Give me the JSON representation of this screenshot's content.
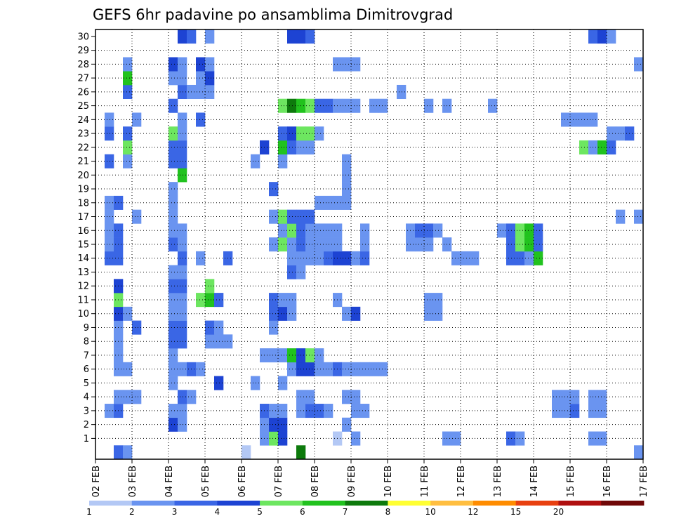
{
  "chart_data": {
    "type": "heatmap",
    "title": "GEFS 6hr padavine po ansamblima Dimitrovgrad",
    "x_unit_per_column": "6h",
    "x_tick_labels": [
      "02 FEB",
      "03 FEB",
      "04 FEB",
      "05 FEB",
      "06 FEB",
      "07 FEB",
      "08 FEB",
      "09 FEB",
      "10 FEB",
      "11 FEB",
      "12 FEB",
      "13 FEB",
      "14 FEB",
      "15 FEB",
      "16 FEB",
      "17 FEB"
    ],
    "y_tick_labels": [
      "1",
      "2",
      "3",
      "4",
      "5",
      "6",
      "7",
      "8",
      "9",
      "10",
      "11",
      "12",
      "13",
      "14",
      "15",
      "16",
      "17",
      "18",
      "19",
      "20",
      "21",
      "22",
      "23",
      "24",
      "25",
      "26",
      "27",
      "28",
      "29",
      "30"
    ],
    "y_range": [
      0,
      30
    ],
    "x_columns": 60,
    "grid": true,
    "legend_position": "bottom",
    "legend": {
      "boundaries": [
        "1",
        "2",
        "3",
        "4",
        "5",
        "6",
        "7",
        "8",
        "10",
        "12",
        "15",
        "20"
      ],
      "colors": [
        "#b3c8f5",
        "#6a94f0",
        "#3a66e5",
        "#1d43d3",
        "#6de660",
        "#21c21e",
        "#0d7a0c",
        "#ffff33",
        "#ffbe40",
        "#ff8c00",
        "#e84010",
        "#b01010",
        "#700808"
      ]
    },
    "cells": [
      [
        0,
        2,
        2
      ],
      [
        0,
        3,
        1
      ],
      [
        0,
        16,
        0
      ],
      [
        0,
        22,
        6
      ],
      [
        0,
        59,
        1
      ],
      [
        1,
        18,
        1
      ],
      [
        1,
        19,
        4
      ],
      [
        1,
        20,
        3
      ],
      [
        1,
        26,
        0
      ],
      [
        1,
        28,
        1
      ],
      [
        1,
        38,
        1
      ],
      [
        1,
        39,
        1
      ],
      [
        1,
        45,
        2
      ],
      [
        1,
        46,
        1
      ],
      [
        1,
        54,
        1
      ],
      [
        1,
        55,
        1
      ],
      [
        2,
        8,
        3
      ],
      [
        2,
        9,
        1
      ],
      [
        2,
        18,
        1
      ],
      [
        2,
        19,
        3
      ],
      [
        2,
        20,
        3
      ],
      [
        2,
        27,
        1
      ],
      [
        3,
        1,
        1
      ],
      [
        3,
        2,
        2
      ],
      [
        3,
        8,
        1
      ],
      [
        3,
        9,
        1
      ],
      [
        3,
        18,
        2
      ],
      [
        3,
        19,
        1
      ],
      [
        3,
        20,
        1
      ],
      [
        3,
        22,
        1
      ],
      [
        3,
        23,
        2
      ],
      [
        3,
        24,
        2
      ],
      [
        3,
        25,
        1
      ],
      [
        3,
        28,
        1
      ],
      [
        3,
        29,
        1
      ],
      [
        3,
        51,
        1
      ],
      [
        3,
        52,
        2
      ],
      [
        3,
        50,
        1
      ],
      [
        3,
        54,
        1
      ],
      [
        3,
        55,
        1
      ],
      [
        4,
        2,
        1
      ],
      [
        4,
        3,
        1
      ],
      [
        4,
        4,
        1
      ],
      [
        4,
        9,
        2
      ],
      [
        4,
        10,
        1
      ],
      [
        4,
        22,
        1
      ],
      [
        4,
        23,
        1
      ],
      [
        4,
        27,
        1
      ],
      [
        4,
        28,
        1
      ],
      [
        4,
        50,
        1
      ],
      [
        4,
        51,
        1
      ],
      [
        4,
        52,
        1
      ],
      [
        4,
        54,
        1
      ],
      [
        4,
        55,
        1
      ],
      [
        5,
        8,
        1
      ],
      [
        5,
        13,
        3
      ],
      [
        5,
        17,
        1
      ],
      [
        5,
        20,
        1
      ],
      [
        6,
        2,
        1
      ],
      [
        6,
        3,
        1
      ],
      [
        6,
        8,
        1
      ],
      [
        6,
        9,
        1
      ],
      [
        6,
        10,
        2
      ],
      [
        6,
        11,
        1
      ],
      [
        6,
        21,
        1
      ],
      [
        6,
        22,
        3
      ],
      [
        6,
        23,
        3
      ],
      [
        6,
        24,
        1
      ],
      [
        6,
        25,
        1
      ],
      [
        6,
        26,
        2
      ],
      [
        6,
        27,
        1
      ],
      [
        6,
        28,
        1
      ],
      [
        6,
        29,
        1
      ],
      [
        6,
        30,
        1
      ],
      [
        6,
        31,
        1
      ],
      [
        7,
        2,
        1
      ],
      [
        7,
        8,
        1
      ],
      [
        7,
        18,
        1
      ],
      [
        7,
        19,
        1
      ],
      [
        7,
        20,
        1
      ],
      [
        7,
        21,
        5
      ],
      [
        7,
        22,
        3
      ],
      [
        7,
        23,
        4
      ],
      [
        7,
        24,
        1
      ],
      [
        8,
        2,
        1
      ],
      [
        8,
        8,
        2
      ],
      [
        8,
        9,
        2
      ],
      [
        8,
        12,
        1
      ],
      [
        8,
        13,
        1
      ],
      [
        8,
        14,
        1
      ],
      [
        9,
        2,
        1
      ],
      [
        9,
        4,
        2
      ],
      [
        9,
        8,
        2
      ],
      [
        9,
        9,
        2
      ],
      [
        9,
        12,
        2
      ],
      [
        9,
        13,
        1
      ],
      [
        9,
        19,
        1
      ],
      [
        10,
        2,
        3
      ],
      [
        10,
        3,
        1
      ],
      [
        10,
        8,
        1
      ],
      [
        10,
        9,
        1
      ],
      [
        10,
        19,
        2
      ],
      [
        10,
        20,
        3
      ],
      [
        10,
        21,
        1
      ],
      [
        10,
        27,
        1
      ],
      [
        10,
        28,
        3
      ],
      [
        10,
        36,
        1
      ],
      [
        10,
        37,
        1
      ],
      [
        11,
        2,
        4
      ],
      [
        11,
        8,
        1
      ],
      [
        11,
        9,
        1
      ],
      [
        11,
        11,
        4
      ],
      [
        11,
        12,
        5
      ],
      [
        11,
        13,
        2
      ],
      [
        11,
        19,
        2
      ],
      [
        11,
        20,
        1
      ],
      [
        11,
        21,
        1
      ],
      [
        11,
        26,
        1
      ],
      [
        11,
        36,
        1
      ],
      [
        11,
        37,
        1
      ],
      [
        12,
        2,
        3
      ],
      [
        12,
        8,
        2
      ],
      [
        12,
        9,
        2
      ],
      [
        12,
        12,
        4
      ],
      [
        13,
        8,
        1
      ],
      [
        13,
        9,
        1
      ],
      [
        13,
        21,
        2
      ],
      [
        13,
        22,
        1
      ],
      [
        14,
        1,
        2
      ],
      [
        14,
        2,
        2
      ],
      [
        14,
        9,
        2
      ],
      [
        14,
        11,
        1
      ],
      [
        14,
        14,
        2
      ],
      [
        14,
        21,
        1
      ],
      [
        14,
        22,
        1
      ],
      [
        14,
        23,
        1
      ],
      [
        14,
        24,
        1
      ],
      [
        14,
        25,
        2
      ],
      [
        14,
        26,
        3
      ],
      [
        14,
        27,
        3
      ],
      [
        14,
        28,
        1
      ],
      [
        14,
        29,
        2
      ],
      [
        14,
        39,
        1
      ],
      [
        14,
        40,
        1
      ],
      [
        14,
        41,
        1
      ],
      [
        14,
        45,
        2
      ],
      [
        14,
        46,
        2
      ],
      [
        14,
        47,
        1
      ],
      [
        14,
        48,
        5
      ],
      [
        15,
        1,
        1
      ],
      [
        15,
        2,
        2
      ],
      [
        15,
        8,
        2
      ],
      [
        15,
        9,
        1
      ],
      [
        15,
        19,
        1
      ],
      [
        15,
        20,
        4
      ],
      [
        15,
        21,
        1
      ],
      [
        15,
        22,
        2
      ],
      [
        15,
        23,
        1
      ],
      [
        15,
        24,
        1
      ],
      [
        15,
        25,
        1
      ],
      [
        15,
        26,
        1
      ],
      [
        15,
        29,
        1
      ],
      [
        15,
        34,
        1
      ],
      [
        15,
        35,
        1
      ],
      [
        15,
        36,
        1
      ],
      [
        15,
        38,
        1
      ],
      [
        15,
        45,
        2
      ],
      [
        15,
        46,
        4
      ],
      [
        15,
        47,
        5
      ],
      [
        15,
        48,
        2
      ],
      [
        16,
        1,
        1
      ],
      [
        16,
        2,
        2
      ],
      [
        16,
        8,
        1
      ],
      [
        16,
        9,
        1
      ],
      [
        16,
        20,
        1
      ],
      [
        16,
        21,
        4
      ],
      [
        16,
        22,
        2
      ],
      [
        16,
        23,
        1
      ],
      [
        16,
        24,
        1
      ],
      [
        16,
        25,
        1
      ],
      [
        16,
        26,
        1
      ],
      [
        16,
        29,
        1
      ],
      [
        16,
        34,
        1
      ],
      [
        16,
        35,
        2
      ],
      [
        16,
        36,
        2
      ],
      [
        16,
        37,
        1
      ],
      [
        16,
        44,
        1
      ],
      [
        16,
        45,
        2
      ],
      [
        16,
        46,
        4
      ],
      [
        16,
        47,
        5
      ],
      [
        16,
        48,
        2
      ],
      [
        17,
        1,
        1
      ],
      [
        17,
        4,
        1
      ],
      [
        17,
        8,
        1
      ],
      [
        17,
        19,
        1
      ],
      [
        17,
        20,
        4
      ],
      [
        17,
        21,
        2
      ],
      [
        17,
        22,
        2
      ],
      [
        17,
        23,
        2
      ],
      [
        17,
        57,
        1
      ],
      [
        17,
        59,
        1
      ],
      [
        18,
        1,
        1
      ],
      [
        18,
        2,
        2
      ],
      [
        18,
        8,
        1
      ],
      [
        18,
        24,
        1
      ],
      [
        18,
        25,
        1
      ],
      [
        18,
        26,
        1
      ],
      [
        18,
        27,
        1
      ],
      [
        19,
        8,
        1
      ],
      [
        19,
        19,
        2
      ],
      [
        19,
        27,
        1
      ],
      [
        20,
        9,
        5
      ],
      [
        20,
        27,
        1
      ],
      [
        21,
        1,
        2
      ],
      [
        21,
        3,
        1
      ],
      [
        21,
        8,
        2
      ],
      [
        21,
        9,
        2
      ],
      [
        21,
        17,
        1
      ],
      [
        21,
        20,
        1
      ],
      [
        21,
        27,
        1
      ],
      [
        22,
        3,
        4
      ],
      [
        22,
        8,
        2
      ],
      [
        22,
        9,
        2
      ],
      [
        22,
        18,
        3
      ],
      [
        22,
        20,
        5
      ],
      [
        22,
        21,
        2
      ],
      [
        22,
        22,
        1
      ],
      [
        22,
        23,
        1
      ],
      [
        22,
        53,
        4
      ],
      [
        22,
        54,
        1
      ],
      [
        22,
        55,
        5
      ],
      [
        22,
        56,
        2
      ],
      [
        23,
        1,
        2
      ],
      [
        23,
        3,
        2
      ],
      [
        23,
        8,
        4
      ],
      [
        23,
        9,
        1
      ],
      [
        23,
        20,
        2
      ],
      [
        23,
        21,
        3
      ],
      [
        23,
        22,
        4
      ],
      [
        23,
        23,
        4
      ],
      [
        23,
        24,
        1
      ],
      [
        23,
        56,
        1
      ],
      [
        23,
        57,
        1
      ],
      [
        23,
        58,
        2
      ],
      [
        24,
        1,
        1
      ],
      [
        24,
        4,
        1
      ],
      [
        24,
        9,
        1
      ],
      [
        24,
        11,
        2
      ],
      [
        24,
        51,
        1
      ],
      [
        24,
        52,
        1
      ],
      [
        24,
        53,
        1
      ],
      [
        24,
        54,
        1
      ],
      [
        25,
        8,
        2
      ],
      [
        25,
        20,
        4
      ],
      [
        25,
        21,
        6
      ],
      [
        25,
        22,
        5
      ],
      [
        25,
        23,
        4
      ],
      [
        25,
        24,
        2
      ],
      [
        25,
        25,
        2
      ],
      [
        25,
        26,
        1
      ],
      [
        25,
        27,
        1
      ],
      [
        25,
        28,
        1
      ],
      [
        25,
        30,
        1
      ],
      [
        25,
        31,
        1
      ],
      [
        25,
        36,
        1
      ],
      [
        25,
        38,
        1
      ],
      [
        25,
        43,
        1
      ],
      [
        26,
        3,
        2
      ],
      [
        26,
        9,
        2
      ],
      [
        26,
        10,
        1
      ],
      [
        26,
        11,
        1
      ],
      [
        26,
        12,
        1
      ],
      [
        26,
        33,
        1
      ],
      [
        27,
        3,
        5
      ],
      [
        27,
        8,
        1
      ],
      [
        27,
        9,
        1
      ],
      [
        27,
        11,
        1
      ],
      [
        27,
        12,
        3
      ],
      [
        28,
        3,
        1
      ],
      [
        28,
        8,
        3
      ],
      [
        28,
        9,
        1
      ],
      [
        28,
        11,
        3
      ],
      [
        28,
        12,
        1
      ],
      [
        28,
        26,
        1
      ],
      [
        28,
        27,
        1
      ],
      [
        28,
        28,
        1
      ],
      [
        28,
        59,
        1
      ],
      [
        30,
        9,
        3
      ],
      [
        30,
        10,
        2
      ],
      [
        30,
        12,
        1
      ],
      [
        30,
        21,
        3
      ],
      [
        30,
        22,
        3
      ],
      [
        30,
        23,
        2
      ],
      [
        30,
        54,
        2
      ],
      [
        30,
        55,
        3
      ],
      [
        30,
        56,
        1
      ]
    ]
  }
}
